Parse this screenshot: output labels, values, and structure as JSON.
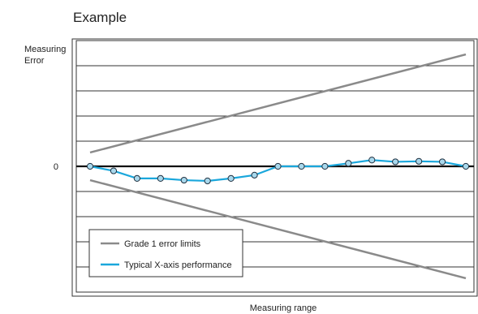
{
  "chart_data": {
    "type": "line",
    "title": "Example",
    "ylabel": [
      "Measuring",
      "Error"
    ],
    "xlabel": "Measuring range",
    "y_tick_label": "0",
    "ylim": [
      -4.5,
      4.5
    ],
    "xlim": [
      0,
      16
    ],
    "grid": true,
    "legend_position": "bottom-left",
    "series": [
      {
        "name": "Grade 1 error limits",
        "color": "#8a8a8a",
        "lines": [
          {
            "x": [
              0,
              16
            ],
            "y": [
              0.55,
              4.45
            ]
          },
          {
            "x": [
              0,
              16
            ],
            "y": [
              -0.55,
              -4.45
            ]
          }
        ]
      },
      {
        "name": "Typical X-axis performance",
        "color": "#1aa7dc",
        "marker": "circle",
        "x": [
          0,
          1,
          2,
          3,
          4,
          5,
          6,
          7,
          8,
          9,
          10,
          11,
          12,
          13,
          14,
          15,
          16
        ],
        "y": [
          0.0,
          -0.18,
          -0.48,
          -0.48,
          -0.55,
          -0.58,
          -0.48,
          -0.35,
          0.0,
          0.0,
          0.0,
          0.12,
          0.25,
          0.18,
          0.2,
          0.18,
          0.0
        ]
      }
    ]
  }
}
